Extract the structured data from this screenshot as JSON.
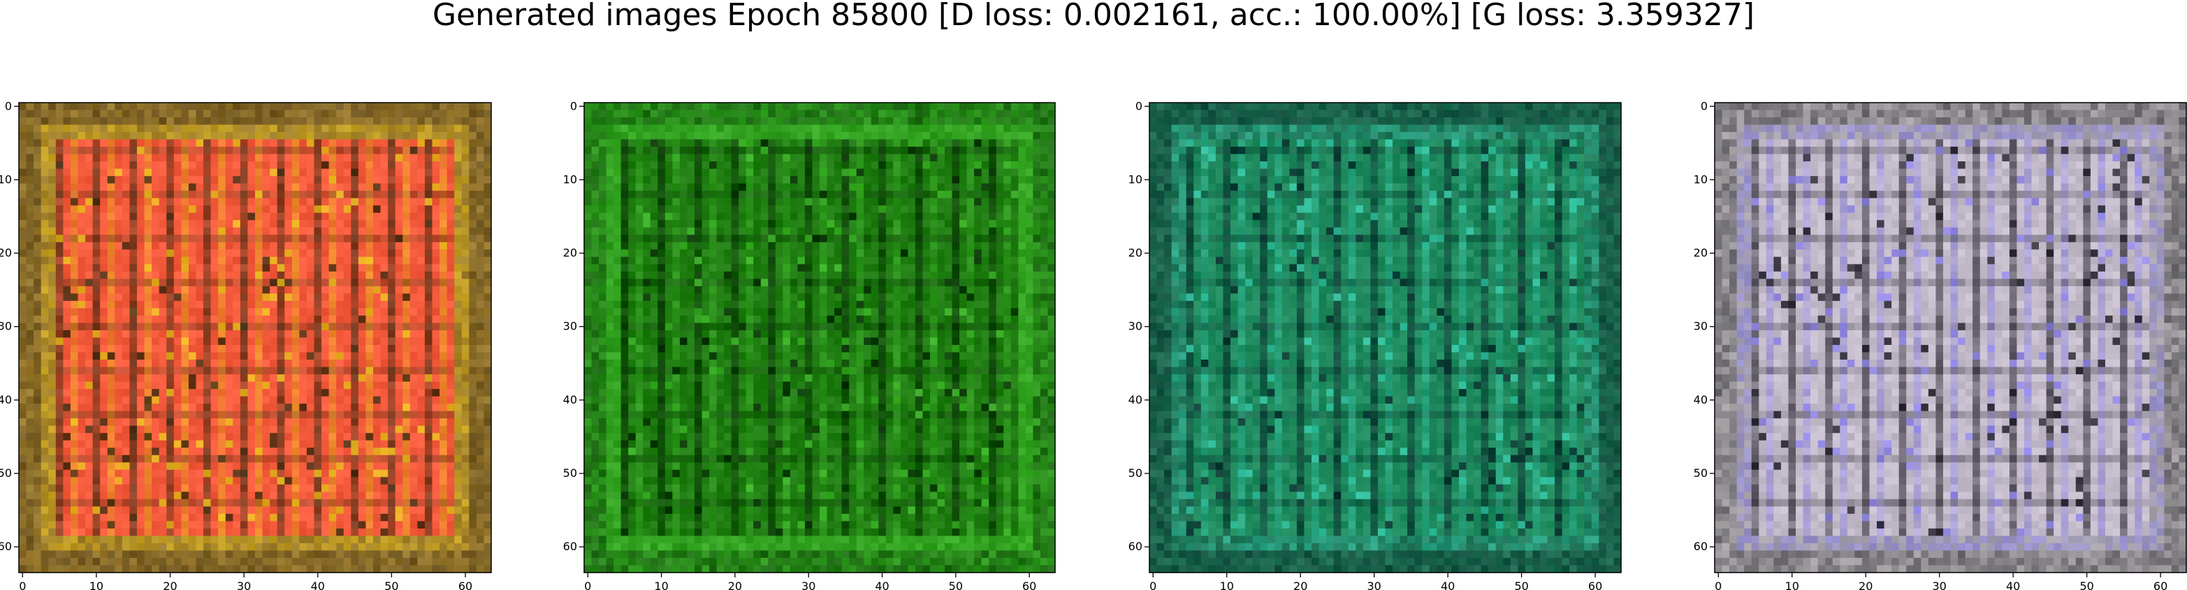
{
  "title": "Generated images Epoch 85800 [D loss: 0.002161, acc.: 100.00%] [G loss: 3.359327]",
  "chart_data": [
    {
      "type": "heatmap",
      "title": "",
      "xlabel": "",
      "ylabel": "",
      "xlim": [
        -0.5,
        63.5
      ],
      "ylim": [
        63.5,
        -0.5
      ],
      "xticks": [
        0,
        10,
        20,
        30,
        40,
        50,
        60
      ],
      "yticks": [
        0,
        10,
        20,
        30,
        40,
        50,
        60
      ],
      "grid": false,
      "legend": "none",
      "palette": {
        "base": "#f45a3c",
        "border": "#9a7a2e",
        "accent": "#e8c01a",
        "dark": "#3a2a10"
      }
    },
    {
      "type": "heatmap",
      "title": "",
      "xlabel": "",
      "ylabel": "",
      "xlim": [
        -0.5,
        63.5
      ],
      "ylim": [
        63.5,
        -0.5
      ],
      "xticks": [
        0,
        10,
        20,
        30,
        40,
        50,
        60
      ],
      "yticks": [
        0,
        10,
        20,
        30,
        40,
        50,
        60
      ],
      "grid": false,
      "legend": "none",
      "palette": {
        "base": "#1f7d12",
        "border": "#2e9a1e",
        "accent": "#3fb82a",
        "dark": "#062a04"
      }
    },
    {
      "type": "heatmap",
      "title": "",
      "xlabel": "",
      "ylabel": "",
      "xlim": [
        -0.5,
        63.5
      ],
      "ylim": [
        63.5,
        -0.5
      ],
      "xticks": [
        0,
        10,
        20,
        30,
        40,
        50,
        60
      ],
      "yticks": [
        0,
        10,
        20,
        30,
        40,
        50,
        60
      ],
      "grid": false,
      "legend": "none",
      "palette": {
        "base": "#1f8a5e",
        "border": "#1e6f52",
        "accent": "#35c9a8",
        "dark": "#072a2a"
      }
    },
    {
      "type": "heatmap",
      "title": "",
      "xlabel": "",
      "ylabel": "",
      "xlim": [
        -0.5,
        63.5
      ],
      "ylim": [
        63.5,
        -0.5
      ],
      "xticks": [
        0,
        10,
        20,
        30,
        40,
        50,
        60
      ],
      "yticks": [
        0,
        10,
        20,
        30,
        40,
        50,
        60
      ],
      "grid": false,
      "legend": "none",
      "palette": {
        "base": "#c4bccb",
        "border": "#a8a4a8",
        "accent": "#8a80ea",
        "dark": "#1c1a22"
      }
    }
  ]
}
